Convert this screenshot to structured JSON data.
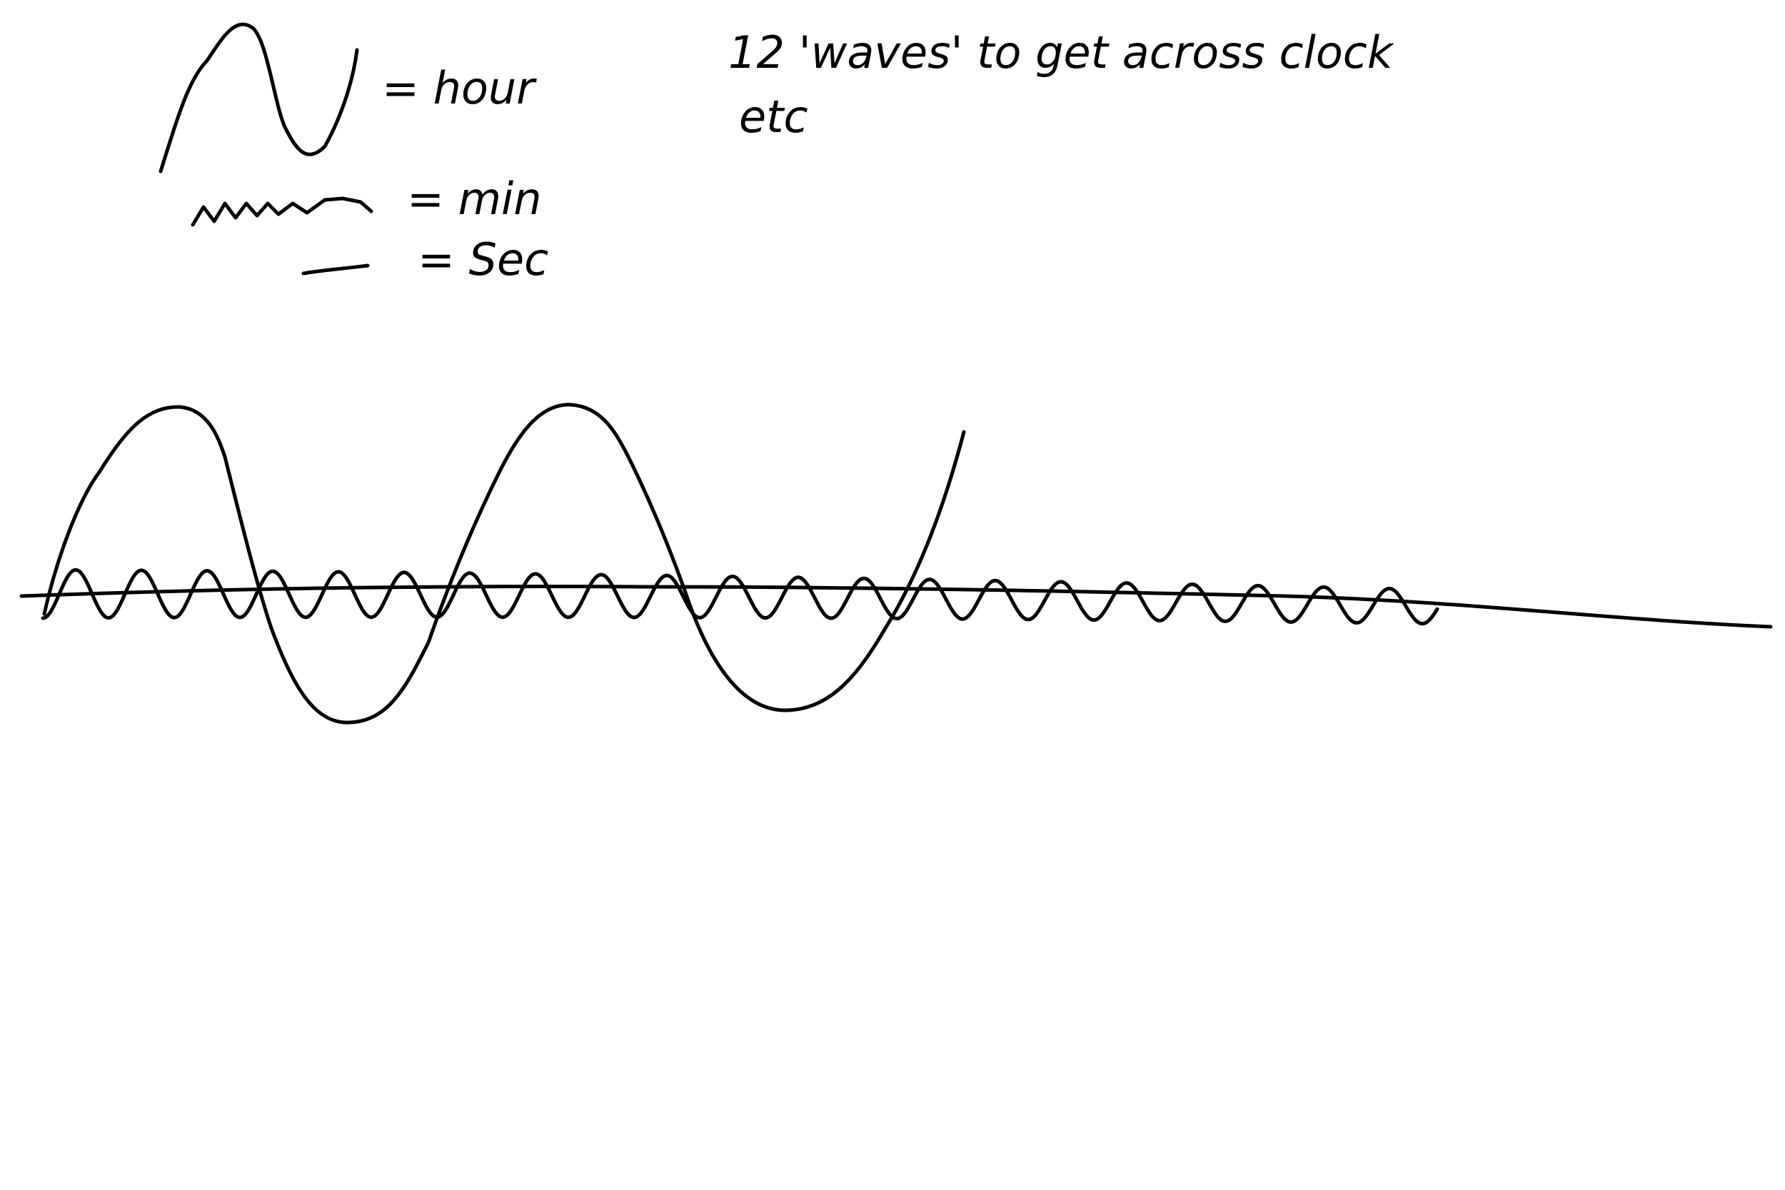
{
  "legend": {
    "hour_label": "= hour",
    "minute_label": "= min",
    "second_label": "= Sec"
  },
  "note": {
    "line1": "12 'waves' to get across clock",
    "line2": "etc"
  },
  "colors": {
    "ink": "#000000",
    "background": "#ffffff"
  }
}
